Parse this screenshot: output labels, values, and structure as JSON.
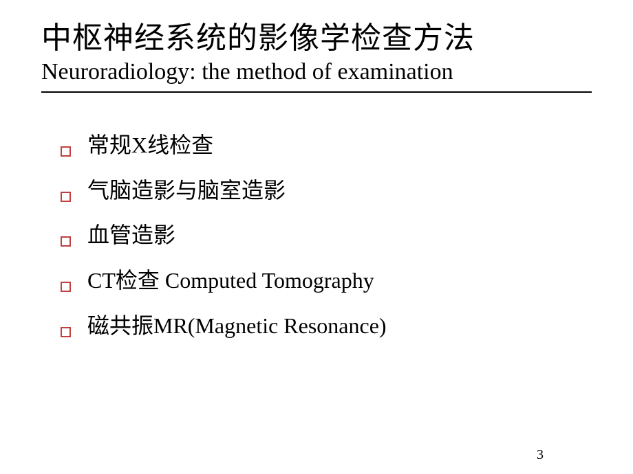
{
  "title": {
    "zh": "中枢神经系统的影像学检查方法",
    "en": "Neuroradiology: the method of examination"
  },
  "bullets": [
    {
      "text": "常规X线检查"
    },
    {
      "text": "气脑造影与脑室造影"
    },
    {
      "text": "血管造影"
    },
    {
      "text": "CT检查    Computed Tomography"
    },
    {
      "text": "磁共振MR(Magnetic Resonance)"
    }
  ],
  "pageNumber": "3",
  "style": {
    "background_color": "#ffffff",
    "title_zh_fontsize": 44,
    "title_en_fontsize": 34,
    "bullet_fontsize": 32,
    "bullet_marker_color": "#c04040",
    "divider_color": "#000000",
    "text_color": "#000000",
    "pagenum_fontsize": 20
  }
}
